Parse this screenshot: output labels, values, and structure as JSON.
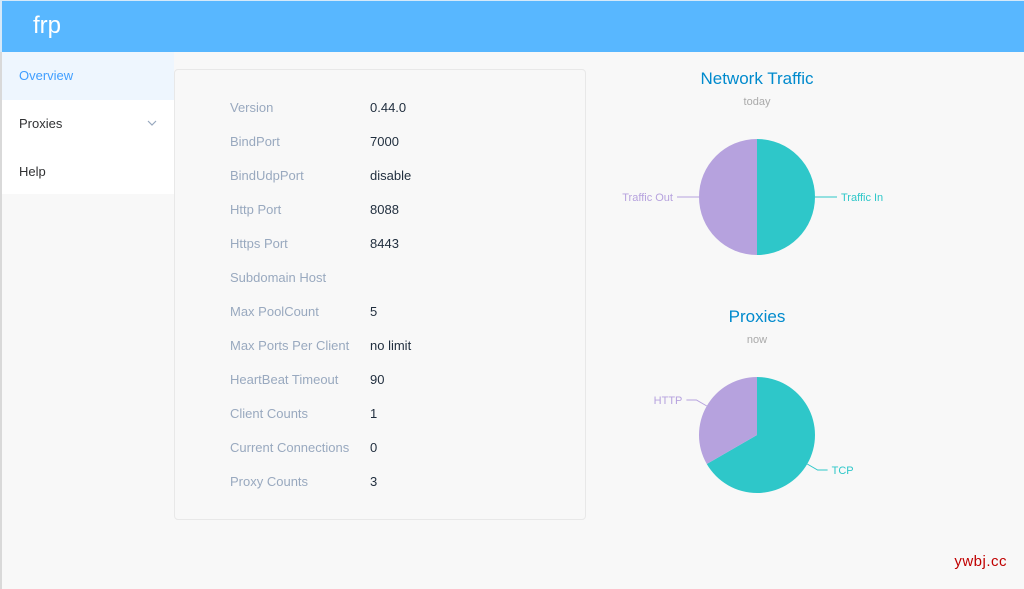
{
  "app": {
    "brand": "frp"
  },
  "sidebar": {
    "items": [
      {
        "label": "Overview",
        "active": true
      },
      {
        "label": "Proxies",
        "expandable": true
      },
      {
        "label": "Help"
      }
    ]
  },
  "server_info": [
    {
      "label": "Version",
      "value": "0.44.0"
    },
    {
      "label": "BindPort",
      "value": "7000"
    },
    {
      "label": "BindUdpPort",
      "value": "disable"
    },
    {
      "label": "Http Port",
      "value": "8088"
    },
    {
      "label": "Https Port",
      "value": "8443"
    },
    {
      "label": "Subdomain Host",
      "value": ""
    },
    {
      "label": "Max PoolCount",
      "value": "5"
    },
    {
      "label": "Max Ports Per Client",
      "value": "no limit"
    },
    {
      "label": "HeartBeat Timeout",
      "value": "90"
    },
    {
      "label": "Client Counts",
      "value": "1"
    },
    {
      "label": "Current Connections",
      "value": "0"
    },
    {
      "label": "Proxy Counts",
      "value": "3"
    }
  ],
  "chart_data": [
    {
      "type": "pie",
      "title": "Network Traffic",
      "subtitle": "today",
      "categories": [
        "Traffic In",
        "Traffic Out"
      ],
      "values": [
        50,
        50
      ],
      "colors": [
        "#2ec7c9",
        "#b6a2de"
      ],
      "legend": "labels"
    },
    {
      "type": "pie",
      "title": "Proxies",
      "subtitle": "now",
      "categories": [
        "TCP",
        "HTTP"
      ],
      "values": [
        2,
        1
      ],
      "colors": [
        "#2ec7c9",
        "#b6a2de"
      ],
      "legend": "labels"
    }
  ],
  "watermark": "ywbj.cc",
  "colors": {
    "header": "#58b7ff",
    "accent": "#409eff",
    "chart_title": "#008acd"
  }
}
